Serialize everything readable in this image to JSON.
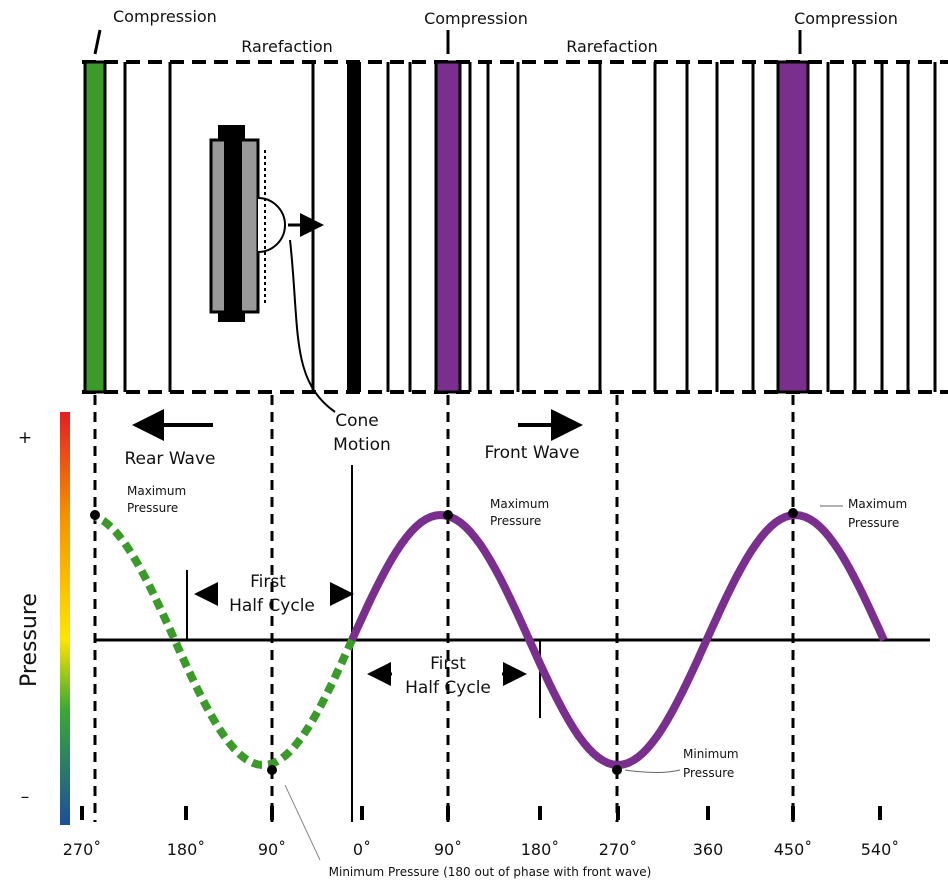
{
  "top_labels": [
    "Compression",
    "Rarefaction",
    "Compression",
    "Rarefaction",
    "Compression"
  ],
  "cone_motion": [
    "Cone",
    "Motion"
  ],
  "rear_wave": "Rear Wave",
  "front_wave": "Front Wave",
  "pressure_axis": {
    "title": "Pressure",
    "plus": "+",
    "minus": "–"
  },
  "max_pressure_rear": [
    "Maximum",
    "Pressure"
  ],
  "max_pressure_front_1": [
    "Maximum",
    "Pressure"
  ],
  "max_pressure_front_2": [
    "Maximum",
    "Pressure"
  ],
  "min_pressure_front": [
    "Minimum",
    "Pressure"
  ],
  "half_cycle_rear": [
    "First",
    "Half Cycle"
  ],
  "half_cycle_front": [
    "First",
    "Half Cycle"
  ],
  "phase_labels": [
    "270˚",
    "180˚",
    "90˚",
    "0˚",
    "90˚",
    "180˚",
    "270˚",
    "360",
    "450˚",
    "540˚"
  ],
  "footnote": "Minimum Pressure (180 out of phase with front wave)"
}
